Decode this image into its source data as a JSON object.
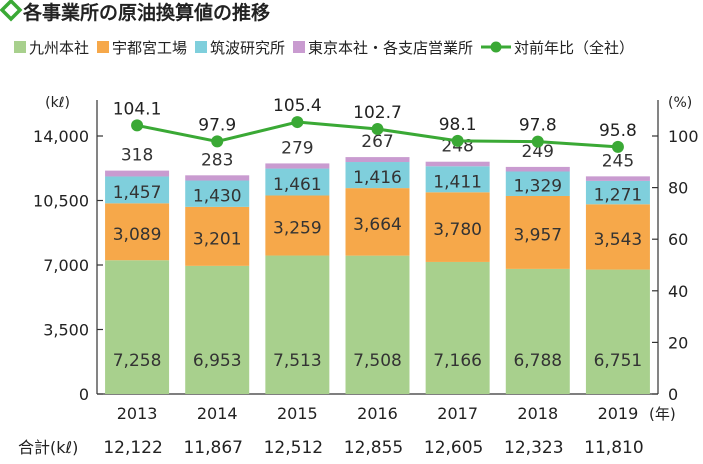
{
  "chart_data": {
    "type": "bar",
    "title": "各事業所の原油換算値の推移",
    "categories": [
      "2013",
      "2014",
      "2015",
      "2016",
      "2017",
      "2018",
      "2019"
    ],
    "x_unit": "(年)",
    "stacked": true,
    "series": [
      {
        "name": "九州本社",
        "color": "#a8d08d",
        "values": [
          7258,
          6953,
          7513,
          7508,
          7166,
          6788,
          6751
        ]
      },
      {
        "name": "宇都宮工場",
        "color": "#f6a84a",
        "values": [
          3089,
          3201,
          3259,
          3664,
          3780,
          3957,
          3543
        ]
      },
      {
        "name": "筑波研究所",
        "color": "#7fcfdc",
        "values": [
          1457,
          1430,
          1461,
          1416,
          1411,
          1329,
          1271
        ]
      },
      {
        "name": "東京本社・各支店営業所",
        "color": "#c99bd0",
        "values": [
          318,
          283,
          279,
          267,
          248,
          249,
          245
        ]
      }
    ],
    "line": {
      "name": "対前年比（全社）",
      "color": "#3aa935",
      "values": [
        104.1,
        97.9,
        105.4,
        102.7,
        98.1,
        97.8,
        95.8
      ]
    },
    "totals_label": "合計(kℓ)",
    "totals": [
      "12,122",
      "11,867",
      "12,512",
      "12,855",
      "12,605",
      "12,323",
      "11,810"
    ],
    "y_left": {
      "unit": "(kℓ)",
      "min": 0,
      "max": 14000,
      "ticks": [
        0,
        3500,
        7000,
        10500,
        14000
      ],
      "tick_labels": [
        "0",
        "3,500",
        "7,000",
        "10,500",
        "14,000"
      ]
    },
    "y_right": {
      "unit": "(%)",
      "min": 0,
      "max": 100,
      "ticks": [
        0,
        20,
        40,
        60,
        80,
        100
      ],
      "tick_labels": [
        "0",
        "20",
        "40",
        "60",
        "80",
        "100"
      ]
    },
    "legend_position": "top",
    "grid": false
  },
  "header": {
    "icon": "diamond-outline-icon",
    "icon_color": "#3aa935"
  }
}
